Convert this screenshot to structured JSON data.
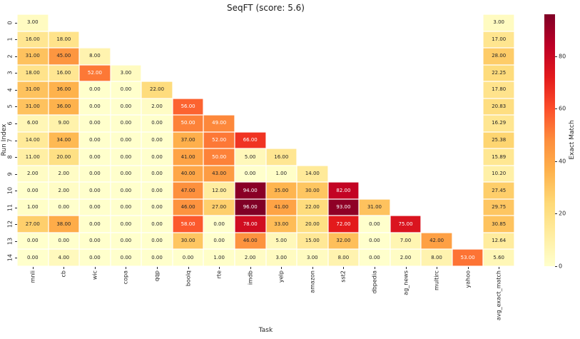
{
  "chart_data": {
    "type": "heatmap",
    "title": "SeqFT (score: 5.6)",
    "xlabel": "Task",
    "ylabel": "Run Index",
    "colorbar_label": "Exact Match",
    "colorbar_ticks": [
      0,
      20,
      40,
      60,
      80
    ],
    "vmin": 0,
    "vmax": 96,
    "colormap": "YlOrRd",
    "colormap_stops": [
      "#ffffcc",
      "#ffeda0",
      "#fed976",
      "#feb24c",
      "#fd8d3c",
      "#fc4e2a",
      "#e31a1c",
      "#bd0026",
      "#800026"
    ],
    "value_format": "2-decimals",
    "annotation_text_colors": {
      "dark": "#262626",
      "light": "#ffffff"
    },
    "categories": [
      "mnli",
      "cb",
      "wic",
      "copa",
      "qqp",
      "boolq",
      "rte",
      "imdb",
      "yelp",
      "amazon",
      "sst2",
      "dbpedia",
      "ag_news",
      "multirc",
      "yahoo",
      "avg_exact_match"
    ],
    "row_labels": [
      "0",
      "1",
      "2",
      "3",
      "4",
      "5",
      "6",
      "7",
      "8",
      "9",
      "10",
      "11",
      "12",
      "13",
      "14"
    ],
    "rows": [
      {
        "run": 0,
        "values": [
          3,
          null,
          null,
          null,
          null,
          null,
          null,
          null,
          null,
          null,
          null,
          null,
          null,
          null,
          null,
          3
        ]
      },
      {
        "run": 1,
        "values": [
          16,
          18,
          null,
          null,
          null,
          null,
          null,
          null,
          null,
          null,
          null,
          null,
          null,
          null,
          null,
          17
        ]
      },
      {
        "run": 2,
        "values": [
          31,
          45,
          8,
          null,
          null,
          null,
          null,
          null,
          null,
          null,
          null,
          null,
          null,
          null,
          null,
          28
        ]
      },
      {
        "run": 3,
        "values": [
          18,
          16,
          52,
          3,
          null,
          null,
          null,
          null,
          null,
          null,
          null,
          null,
          null,
          null,
          null,
          22.25
        ]
      },
      {
        "run": 4,
        "values": [
          31,
          36,
          0,
          0,
          22,
          null,
          null,
          null,
          null,
          null,
          null,
          null,
          null,
          null,
          null,
          17.8
        ]
      },
      {
        "run": 5,
        "values": [
          31,
          36,
          0,
          0,
          2,
          56,
          null,
          null,
          null,
          null,
          null,
          null,
          null,
          null,
          null,
          20.83
        ]
      },
      {
        "run": 6,
        "values": [
          6,
          9,
          0,
          0,
          0,
          50,
          49,
          null,
          null,
          null,
          null,
          null,
          null,
          null,
          null,
          16.29
        ]
      },
      {
        "run": 7,
        "values": [
          14,
          34,
          0,
          0,
          0,
          37,
          52,
          66,
          null,
          null,
          null,
          null,
          null,
          null,
          null,
          25.38
        ]
      },
      {
        "run": 8,
        "values": [
          11,
          20,
          0,
          0,
          0,
          41,
          50,
          5,
          16,
          null,
          null,
          null,
          null,
          null,
          null,
          15.89
        ]
      },
      {
        "run": 9,
        "values": [
          2,
          2,
          0,
          0,
          0,
          40,
          43,
          0,
          1,
          14,
          null,
          null,
          null,
          null,
          null,
          10.2
        ]
      },
      {
        "run": 10,
        "values": [
          0,
          2,
          0,
          0,
          0,
          47,
          12,
          94,
          35,
          30,
          82,
          null,
          null,
          null,
          null,
          27.45
        ]
      },
      {
        "run": 11,
        "values": [
          1,
          0,
          0,
          0,
          0,
          46,
          27,
          96,
          41,
          22,
          93,
          31,
          null,
          null,
          null,
          29.75
        ]
      },
      {
        "run": 12,
        "values": [
          27,
          38,
          0,
          0,
          0,
          58,
          0,
          78,
          33,
          20,
          72,
          0,
          75,
          null,
          null,
          30.85
        ]
      },
      {
        "run": 13,
        "values": [
          0,
          0,
          0,
          0,
          0,
          30,
          0,
          46,
          5,
          15,
          32,
          0,
          7,
          42,
          null,
          12.64
        ]
      },
      {
        "run": 14,
        "values": [
          0,
          4,
          0,
          0,
          0,
          0,
          1,
          2,
          3,
          3,
          8,
          0,
          2,
          8,
          53,
          5.6
        ]
      }
    ]
  }
}
